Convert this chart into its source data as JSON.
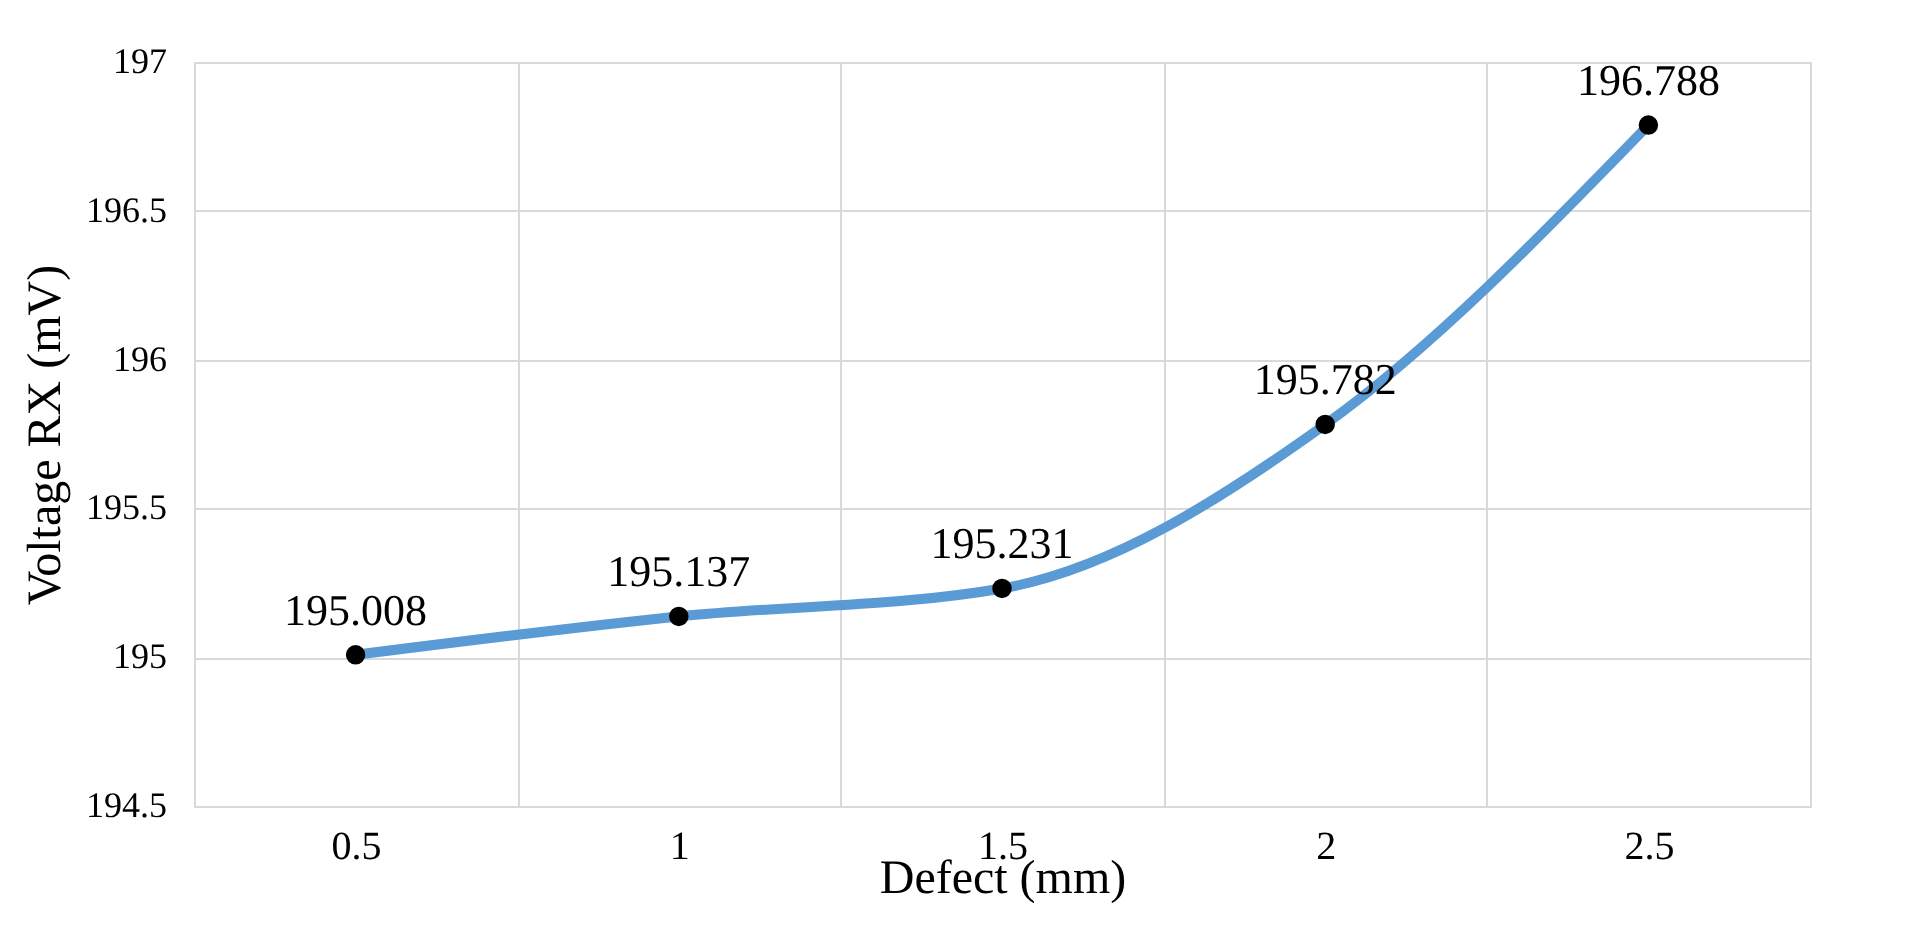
{
  "chart_data": {
    "type": "line",
    "xlabel": "Defect (mm)",
    "ylabel": "Voltage RX (mV)",
    "categories": [
      "0.5",
      "1",
      "1.5",
      "2",
      "2.5"
    ],
    "series": [
      {
        "color": "#5b9bd5",
        "values": [
          195.008,
          195.137,
          195.231,
          195.782,
          196.788
        ]
      }
    ],
    "ylim": [
      194.5,
      197
    ],
    "yticks": [
      194.5,
      195,
      195.5,
      196,
      196.5,
      197
    ],
    "grid": true,
    "marker": "circle",
    "line_style": "solid",
    "data_labels": true,
    "legend": false
  }
}
